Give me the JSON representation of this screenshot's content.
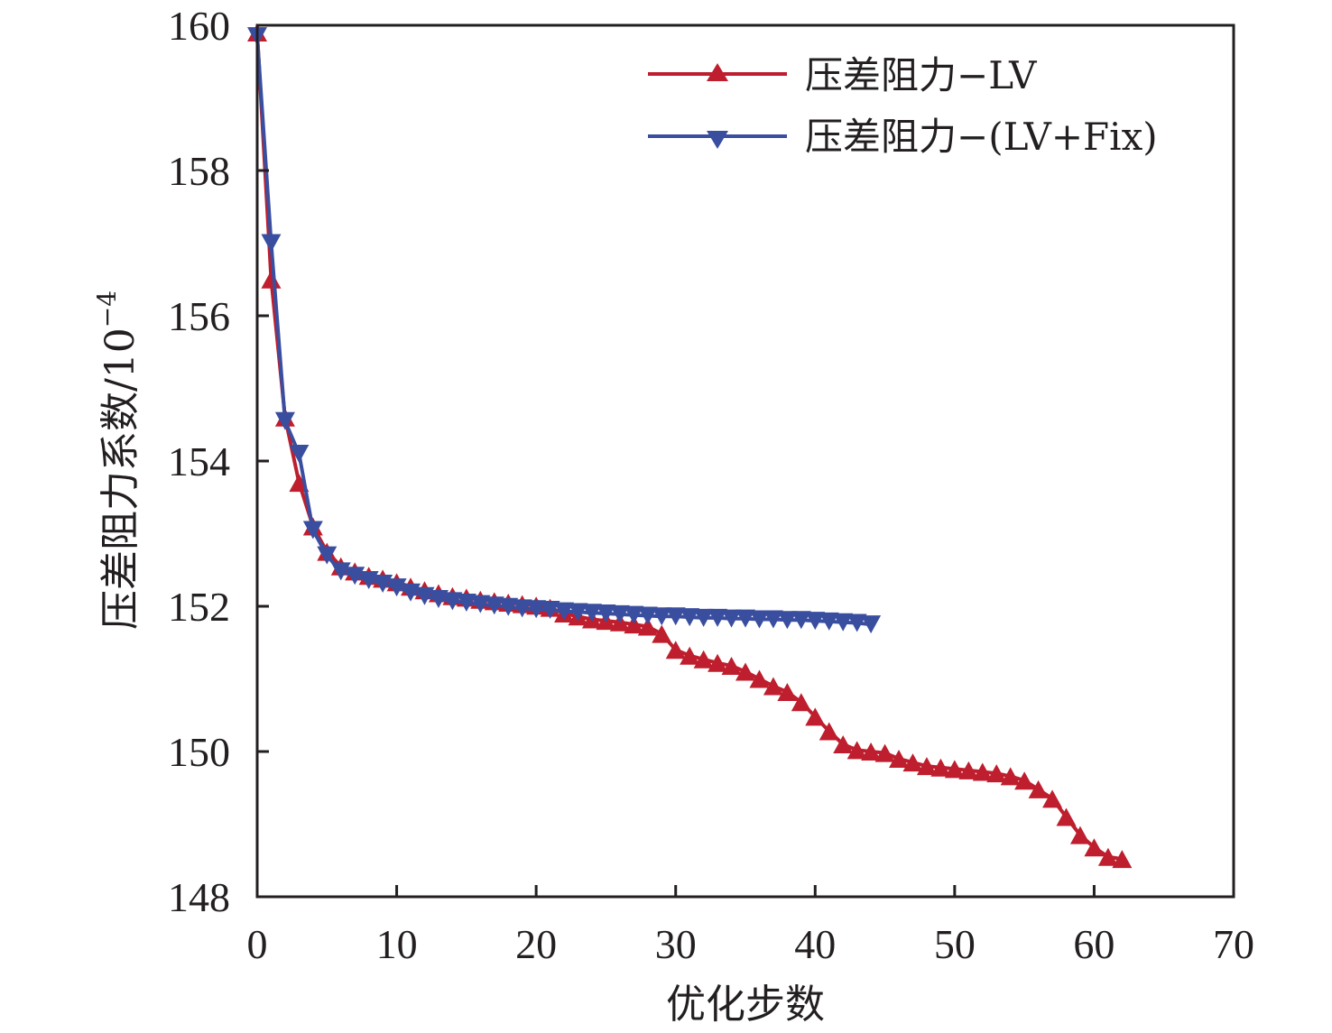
{
  "chart_data": {
    "type": "line",
    "title": "",
    "xlabel": "优化步数",
    "ylabel": "压差阻力系数/10",
    "ylabel_exponent": "−4",
    "xlim": [
      0,
      70
    ],
    "ylim": [
      148,
      160
    ],
    "xticks": [
      0,
      10,
      20,
      30,
      40,
      50,
      60,
      70
    ],
    "yticks": [
      148,
      150,
      152,
      154,
      156,
      158,
      160
    ],
    "xtick_labels": [
      "0",
      "10",
      "20",
      "30",
      "40",
      "50",
      "60",
      "70"
    ],
    "ytick_labels": [
      "148",
      "150",
      "152",
      "154",
      "156",
      "158",
      "160"
    ],
    "grid": false,
    "legend_position": "top-right",
    "series": [
      {
        "name": "压差阻力−LV",
        "color": "#be1e2d",
        "marker": "triangle-up",
        "x": [
          0,
          1,
          2,
          3,
          4,
          5,
          6,
          7,
          8,
          9,
          10,
          11,
          12,
          13,
          14,
          15,
          16,
          17,
          18,
          19,
          20,
          21,
          22,
          23,
          24,
          25,
          26,
          27,
          28,
          29,
          30,
          31,
          32,
          33,
          34,
          35,
          36,
          37,
          38,
          39,
          40,
          41,
          42,
          43,
          44,
          45,
          46,
          47,
          48,
          49,
          50,
          51,
          52,
          53,
          54,
          55,
          56,
          57,
          58,
          59,
          60,
          61,
          62
        ],
        "values": [
          159.9,
          156.5,
          154.6,
          153.7,
          153.1,
          152.75,
          152.55,
          152.48,
          152.42,
          152.38,
          152.33,
          152.27,
          152.22,
          152.18,
          152.14,
          152.12,
          152.09,
          152.07,
          152.05,
          152.03,
          152.01,
          151.98,
          151.9,
          151.86,
          151.82,
          151.8,
          151.78,
          151.75,
          151.72,
          151.62,
          151.4,
          151.32,
          151.27,
          151.22,
          151.18,
          151.1,
          151.0,
          150.9,
          150.82,
          150.68,
          150.48,
          150.28,
          150.1,
          150.02,
          150.0,
          149.98,
          149.9,
          149.85,
          149.8,
          149.78,
          149.76,
          149.74,
          149.72,
          149.7,
          149.66,
          149.6,
          149.48,
          149.35,
          149.1,
          148.85,
          148.68,
          148.55,
          148.52
        ]
      },
      {
        "name": "压差阻力−(LV+Fix)",
        "color": "#3a4ea0",
        "marker": "triangle-down",
        "x": [
          0,
          1,
          2,
          3,
          4,
          5,
          6,
          7,
          8,
          9,
          10,
          11,
          12,
          13,
          14,
          15,
          16,
          17,
          18,
          19,
          20,
          21,
          22,
          23,
          24,
          25,
          26,
          27,
          28,
          29,
          30,
          31,
          32,
          33,
          34,
          35,
          36,
          37,
          38,
          39,
          40,
          41,
          42,
          43,
          44
        ],
        "values": [
          159.85,
          157.0,
          154.55,
          154.1,
          153.05,
          152.7,
          152.48,
          152.42,
          152.36,
          152.31,
          152.26,
          152.19,
          152.14,
          152.1,
          152.07,
          152.05,
          152.03,
          152.01,
          151.99,
          151.97,
          151.96,
          151.95,
          151.93,
          151.92,
          151.91,
          151.9,
          151.89,
          151.88,
          151.87,
          151.86,
          151.86,
          151.85,
          151.84,
          151.84,
          151.83,
          151.83,
          151.82,
          151.82,
          151.81,
          151.81,
          151.8,
          151.79,
          151.78,
          151.77,
          151.75
        ]
      }
    ]
  }
}
